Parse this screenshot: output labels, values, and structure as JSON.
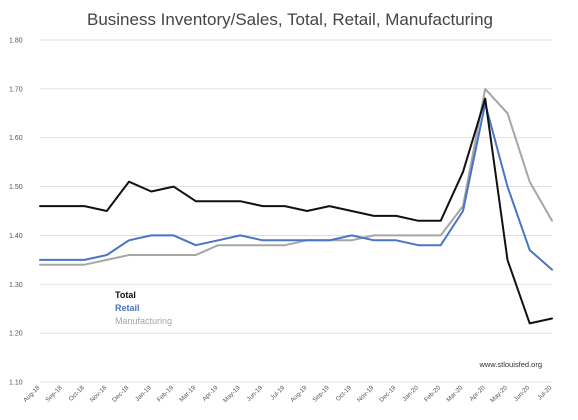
{
  "chart_data": {
    "type": "line",
    "title": "Business Inventory/Sales, Total, Retail, Manufacturing",
    "xlabel": "",
    "ylabel": "",
    "ylim": [
      1.1,
      1.8
    ],
    "yticks": [
      "1.10",
      "1.20",
      "1.30",
      "1.40",
      "1.50",
      "1.60",
      "1.70",
      "1.80"
    ],
    "grid": true,
    "legend_position": "bottom-left",
    "categories": [
      "Aug-18",
      "Sep-18",
      "Oct-18",
      "Nov-18",
      "Dec-18",
      "Jan-19",
      "Feb-19",
      "Mar-19",
      "Apr-19",
      "May-19",
      "Jun-19",
      "Jul-19",
      "Aug-19",
      "Sep-19",
      "Oct-19",
      "Nov-19",
      "Dec-19",
      "Jan-20",
      "Feb-20",
      "Mar-20",
      "Apr-20",
      "May-20",
      "Jun-20",
      "Jul-20"
    ],
    "series": [
      {
        "name": "Total",
        "color": "#111111",
        "values": [
          1.46,
          1.46,
          1.46,
          1.45,
          1.51,
          1.49,
          1.5,
          1.47,
          1.47,
          1.47,
          1.46,
          1.46,
          1.45,
          1.46,
          1.45,
          1.44,
          1.44,
          1.43,
          1.43,
          1.53,
          1.68,
          1.35,
          1.22,
          1.23
        ]
      },
      {
        "name": "Retail",
        "color": "#4a74c4",
        "values": [
          1.35,
          1.35,
          1.35,
          1.36,
          1.39,
          1.4,
          1.4,
          1.38,
          1.39,
          1.4,
          1.39,
          1.39,
          1.39,
          1.39,
          1.4,
          1.39,
          1.39,
          1.38,
          1.38,
          1.45,
          1.67,
          1.5,
          1.37,
          1.33
        ]
      },
      {
        "name": "Manufacturing",
        "color": "#a6a6a6",
        "values": [
          1.34,
          1.34,
          1.34,
          1.35,
          1.36,
          1.36,
          1.36,
          1.36,
          1.38,
          1.38,
          1.38,
          1.38,
          1.39,
          1.39,
          1.39,
          1.4,
          1.4,
          1.4,
          1.4,
          1.46,
          1.7,
          1.65,
          1.51,
          1.43
        ]
      }
    ],
    "source": "www.stlouisfed.org"
  }
}
